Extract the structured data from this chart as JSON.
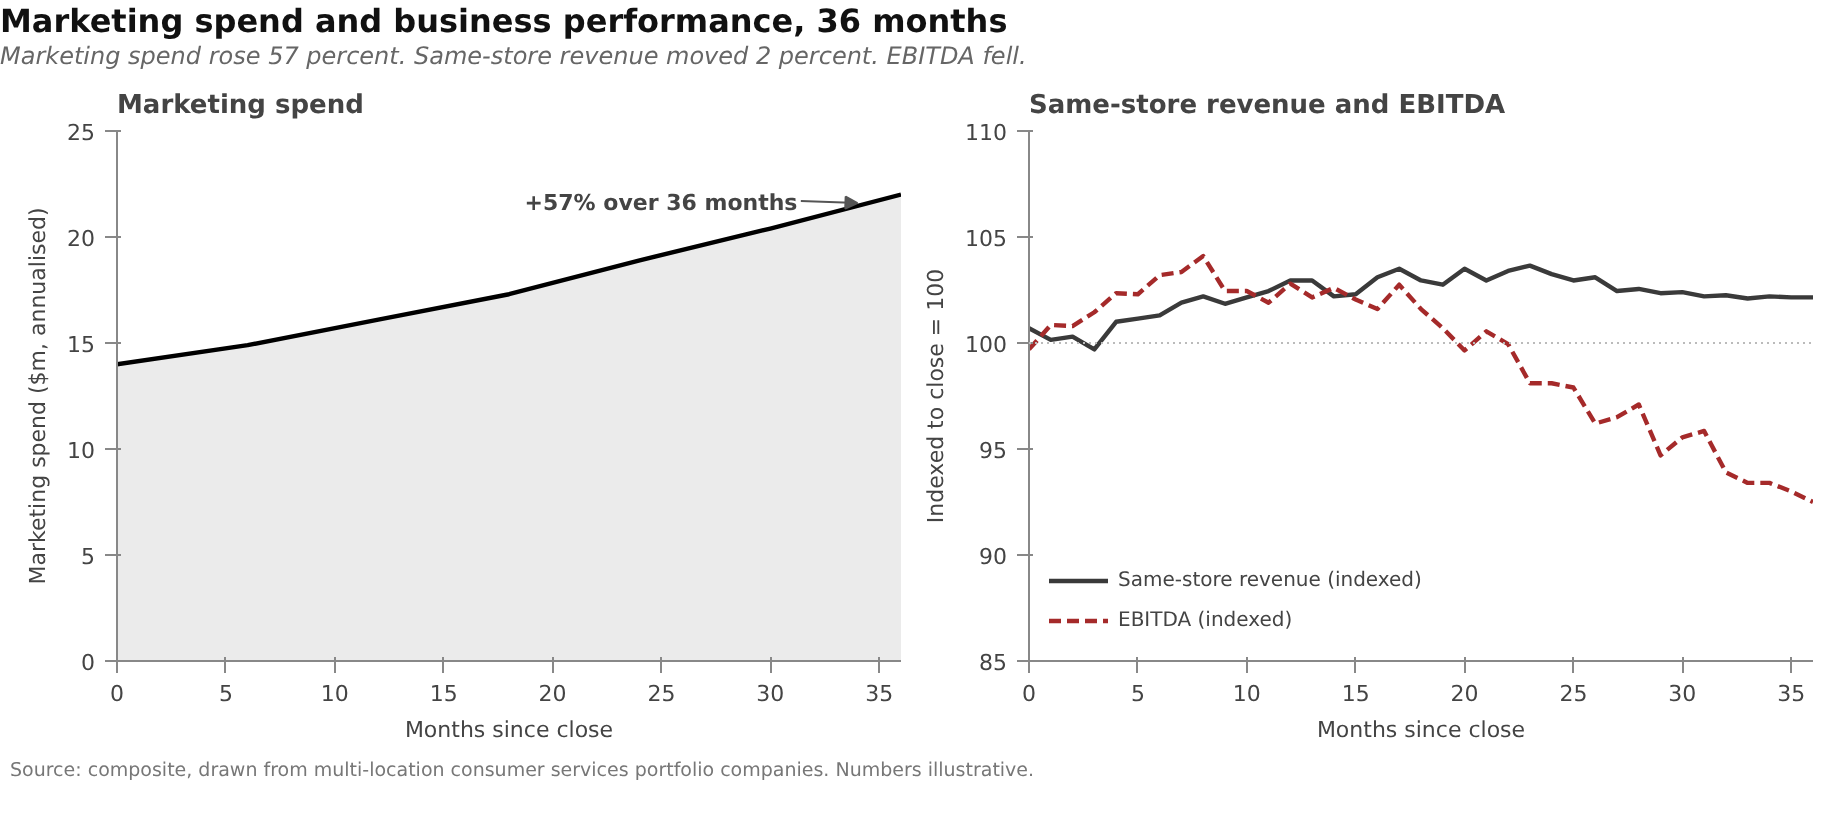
{
  "chart_data": [
    {
      "type": "other",
      "title": "Marketing spend and business performance, 36 months",
      "subtitle": "Marketing spend rose 57 percent. Same-store revenue moved 2 percent. EBITDA fell.",
      "annotations": [
        "Source: composite, drawn from multi-location consumer services portfolio companies. Numbers illustrative."
      ]
    },
    {
      "type": "area",
      "title": "Marketing spend",
      "xlabel": "Months since close",
      "ylabel": "Marketing spend ($m, annualised)",
      "x": [
        0,
        6,
        12,
        18,
        24,
        30,
        36
      ],
      "series": [
        {
          "color": "#000000",
          "values": [
            14,
            14.9,
            16.1,
            17.3,
            18.9,
            20.4,
            22
          ]
        }
      ],
      "xlim": [
        0,
        36
      ],
      "ylim": [
        0,
        25
      ],
      "xticks": [
        0,
        5,
        10,
        15,
        20,
        25,
        30,
        35
      ],
      "yticks": [
        0,
        5,
        10,
        15,
        20,
        25
      ],
      "grid": false,
      "legend": false,
      "annotations": [
        {
          "text": "+57% over 36 months",
          "x": 34,
          "y": 21.6
        }
      ]
    },
    {
      "type": "line",
      "title": "Same-store revenue and EBITDA",
      "xlabel": "Months since close",
      "ylabel": "Indexed to close = 100",
      "x": [
        0,
        1,
        2,
        3,
        4,
        5,
        6,
        7,
        8,
        9,
        10,
        11,
        12,
        13,
        14,
        15,
        16,
        17,
        18,
        19,
        20,
        21,
        22,
        23,
        24,
        25,
        26,
        27,
        28,
        29,
        30,
        31,
        32,
        33,
        34,
        35,
        36
      ],
      "series": [
        {
          "name": "Same-store revenue (indexed)",
          "color": "#3a3a3a",
          "line_style": "solid",
          "values": [
            100.7,
            100.15,
            100.3,
            99.7,
            101.0,
            101.15,
            101.3,
            101.9,
            102.2,
            101.85,
            102.15,
            102.45,
            102.95,
            102.95,
            102.2,
            102.3,
            103.1,
            103.5,
            102.95,
            102.75,
            103.5,
            102.95,
            103.4,
            103.65,
            103.25,
            102.95,
            103.1,
            102.45,
            102.55,
            102.35,
            102.4,
            102.2,
            102.25,
            102.1,
            102.2,
            102.15,
            102.15
          ]
        },
        {
          "name": "EBITDA (indexed)",
          "color": "#a52a2a",
          "line_style": "dashed",
          "values": [
            99.7,
            100.85,
            100.8,
            101.45,
            102.35,
            102.3,
            103.2,
            103.35,
            104.1,
            102.45,
            102.45,
            101.9,
            102.8,
            102.15,
            102.6,
            102.05,
            101.6,
            102.75,
            101.6,
            100.7,
            99.65,
            100.55,
            99.95,
            98.1,
            98.1,
            97.9,
            96.2,
            96.5,
            97.1,
            94.7,
            95.55,
            95.85,
            93.9,
            93.4,
            93.4,
            93.0,
            92.5
          ]
        }
      ],
      "xlim": [
        0,
        36
      ],
      "ylim": [
        85,
        110
      ],
      "xticks": [
        0,
        5,
        10,
        15,
        20,
        25,
        30,
        35
      ],
      "yticks": [
        85,
        90,
        95,
        100,
        105,
        110
      ],
      "grid": false,
      "legend": "bottom left",
      "ref_lines": [
        {
          "axis": "y",
          "value": 100,
          "color": "#bbbbbb",
          "line_style": "dotted"
        }
      ]
    }
  ]
}
